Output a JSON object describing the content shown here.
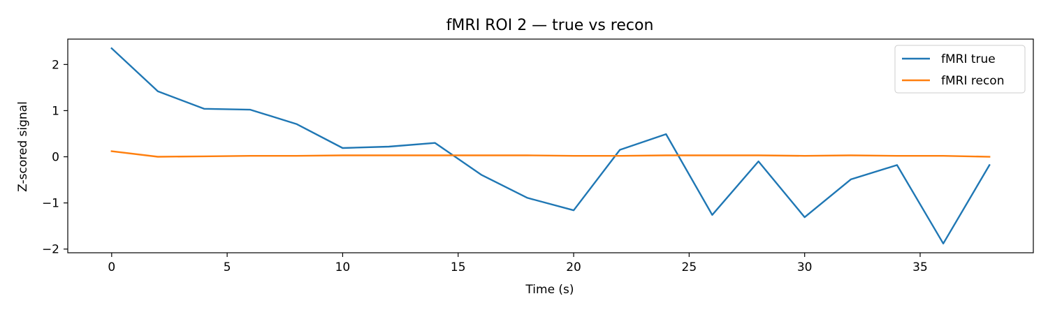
{
  "chart_data": {
    "type": "line",
    "title": "fMRI ROI 2 — true vs recon",
    "xlabel": "Time (s)",
    "ylabel": "Z-scored signal",
    "xlim": [
      -1.9,
      39.9
    ],
    "ylim": [
      -2.08,
      2.55
    ],
    "xticks": [
      0,
      5,
      10,
      15,
      20,
      25,
      30,
      35
    ],
    "yticks": [
      -2,
      -1,
      0,
      1,
      2
    ],
    "grid": false,
    "legend_position": "top-right",
    "x": [
      0,
      2,
      4,
      6,
      8,
      10,
      12,
      14,
      16,
      18,
      20,
      22,
      24,
      26,
      28,
      30,
      32,
      34,
      36,
      38
    ],
    "series": [
      {
        "name": "fMRI true",
        "color": "#1f77b4",
        "values": [
          2.35,
          1.42,
          1.04,
          1.02,
          0.71,
          0.19,
          0.22,
          0.3,
          -0.39,
          -0.89,
          -1.16,
          0.15,
          0.49,
          -1.26,
          -0.1,
          -1.31,
          -0.49,
          -0.18,
          -1.88,
          -0.18
        ]
      },
      {
        "name": "fMRI recon",
        "color": "#ff7f0e",
        "values": [
          0.12,
          0.0,
          0.01,
          0.02,
          0.02,
          0.03,
          0.03,
          0.03,
          0.03,
          0.03,
          0.02,
          0.02,
          0.03,
          0.03,
          0.03,
          0.02,
          0.03,
          0.02,
          0.02,
          0.0
        ]
      }
    ]
  }
}
